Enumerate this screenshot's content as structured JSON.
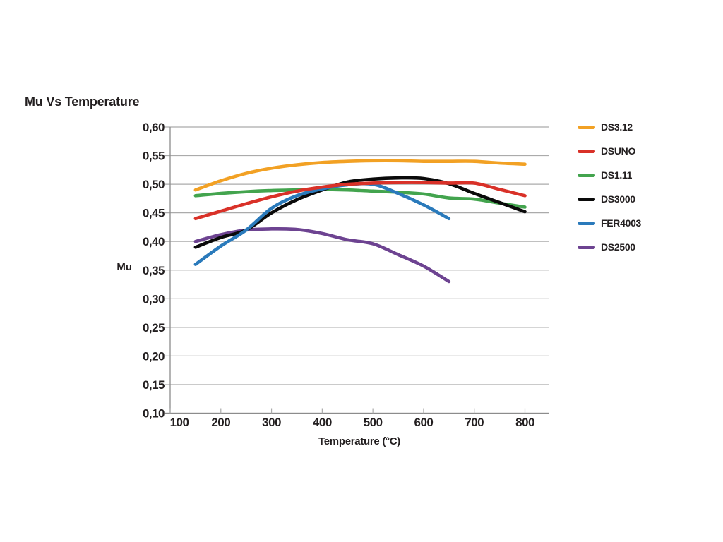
{
  "title": "Mu Vs Temperature",
  "chart_data": {
    "type": "line",
    "title": "Mu Vs Temperature",
    "xlabel": "Temperature (°C)",
    "ylabel": "Mu",
    "xlim": [
      100,
      847
    ],
    "ylim": [
      0.1,
      0.6
    ],
    "x_ticks": [
      100,
      200,
      300,
      400,
      500,
      600,
      700,
      800
    ],
    "x_tick_labels": [
      "100",
      "200",
      "300",
      "400",
      "500",
      "600",
      "700",
      "800"
    ],
    "y_ticks": [
      0.1,
      0.15,
      0.2,
      0.25,
      0.3,
      0.35,
      0.4,
      0.45,
      0.5,
      0.55,
      0.6
    ],
    "y_tick_labels": [
      "0,10",
      "0,15",
      "0,20",
      "0,25",
      "0,30",
      "0,35",
      "0,40",
      "0,45",
      "0,50",
      "0,55",
      "0,60"
    ],
    "decimal_separator": ",",
    "grid": "horizontal",
    "legend_position": "right",
    "colors": {
      "text": "#231f20",
      "gridline": "#ababab",
      "axis": "#8c8c8c"
    },
    "series": [
      {
        "name": "DS2500",
        "color": "#6D4391",
        "x": [
          150,
          200,
          250,
          300,
          350,
          400,
          450,
          500,
          550,
          600,
          650
        ],
        "y": [
          0.4,
          0.412,
          0.42,
          0.422,
          0.421,
          0.414,
          0.403,
          0.396,
          0.377,
          0.357,
          0.33
        ]
      },
      {
        "name": "DS1.11",
        "color": "#43A44E",
        "x": [
          150,
          200,
          250,
          300,
          350,
          400,
          450,
          500,
          550,
          600,
          650,
          700,
          750,
          800
        ],
        "y": [
          0.48,
          0.484,
          0.487,
          0.489,
          0.49,
          0.491,
          0.49,
          0.488,
          0.486,
          0.483,
          0.476,
          0.474,
          0.467,
          0.46
        ]
      },
      {
        "name": "DS3000",
        "color": "#0a0a0a",
        "x": [
          150,
          200,
          250,
          300,
          350,
          400,
          450,
          500,
          550,
          600,
          650,
          700,
          750,
          800
        ],
        "y": [
          0.39,
          0.407,
          0.42,
          0.45,
          0.473,
          0.49,
          0.504,
          0.509,
          0.511,
          0.51,
          0.501,
          0.484,
          0.468,
          0.452
        ]
      },
      {
        "name": "FER4003",
        "color": "#2A7ABB",
        "x": [
          150,
          200,
          250,
          300,
          350,
          400,
          450,
          500,
          550,
          600,
          650
        ],
        "y": [
          0.36,
          0.392,
          0.42,
          0.458,
          0.48,
          0.492,
          0.499,
          0.5,
          0.484,
          0.464,
          0.44
        ]
      },
      {
        "name": "DSUNO",
        "color": "#D93128",
        "x": [
          150,
          200,
          250,
          300,
          350,
          400,
          450,
          500,
          550,
          600,
          650,
          700,
          750,
          800
        ],
        "y": [
          0.44,
          0.453,
          0.466,
          0.478,
          0.488,
          0.495,
          0.5,
          0.502,
          0.503,
          0.503,
          0.502,
          0.502,
          0.491,
          0.48
        ]
      },
      {
        "name": "DS3.12",
        "color": "#F2A124",
        "x": [
          150,
          200,
          250,
          300,
          350,
          400,
          450,
          500,
          550,
          600,
          650,
          700,
          750,
          800
        ],
        "y": [
          0.49,
          0.506,
          0.519,
          0.528,
          0.534,
          0.538,
          0.54,
          0.541,
          0.541,
          0.54,
          0.54,
          0.54,
          0.537,
          0.535
        ]
      }
    ],
    "legend_order": [
      "DS3.12",
      "DSUNO",
      "DS1.11",
      "DS3000",
      "FER4003",
      "DS2500"
    ]
  }
}
